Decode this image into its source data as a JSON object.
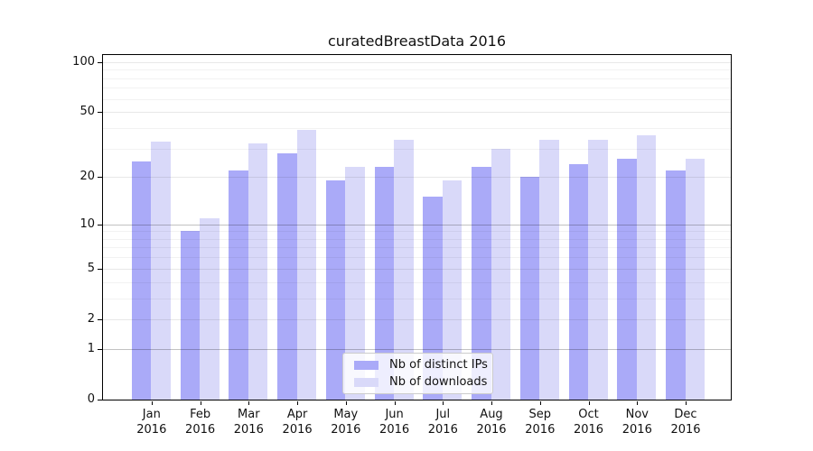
{
  "title": "curatedBreastData 2016",
  "chart_data": {
    "type": "bar",
    "title": "curatedBreastData 2016",
    "xlabel": "",
    "ylabel": "",
    "scale": "log1p",
    "grid": true,
    "legend_position": "lower center",
    "categories": [
      "Jan",
      "Feb",
      "Mar",
      "Apr",
      "May",
      "Jun",
      "Jul",
      "Aug",
      "Sep",
      "Oct",
      "Nov",
      "Dec"
    ],
    "year": "2016",
    "yticks": [
      0,
      1,
      2,
      5,
      10,
      20,
      50,
      100
    ],
    "minor_gridlines": [
      3,
      4,
      6,
      7,
      8,
      9,
      30,
      40,
      60,
      70,
      80,
      90
    ],
    "dark_gridlines": [
      1,
      10
    ],
    "ylim": [
      0,
      113
    ],
    "series": [
      {
        "name": "Nb of distinct IPs",
        "color": "#aaaaf8",
        "values": [
          25,
          9,
          22,
          28,
          19,
          23,
          15,
          23,
          20,
          24,
          26,
          22
        ]
      },
      {
        "name": "Nb of downloads",
        "color": "#d9d9f9",
        "values": [
          33,
          11,
          32,
          39,
          23,
          34,
          19,
          30,
          34,
          34,
          36,
          26
        ]
      }
    ]
  },
  "legend": {
    "item1": "Nb of distinct IPs",
    "item2": "Nb of downloads"
  }
}
